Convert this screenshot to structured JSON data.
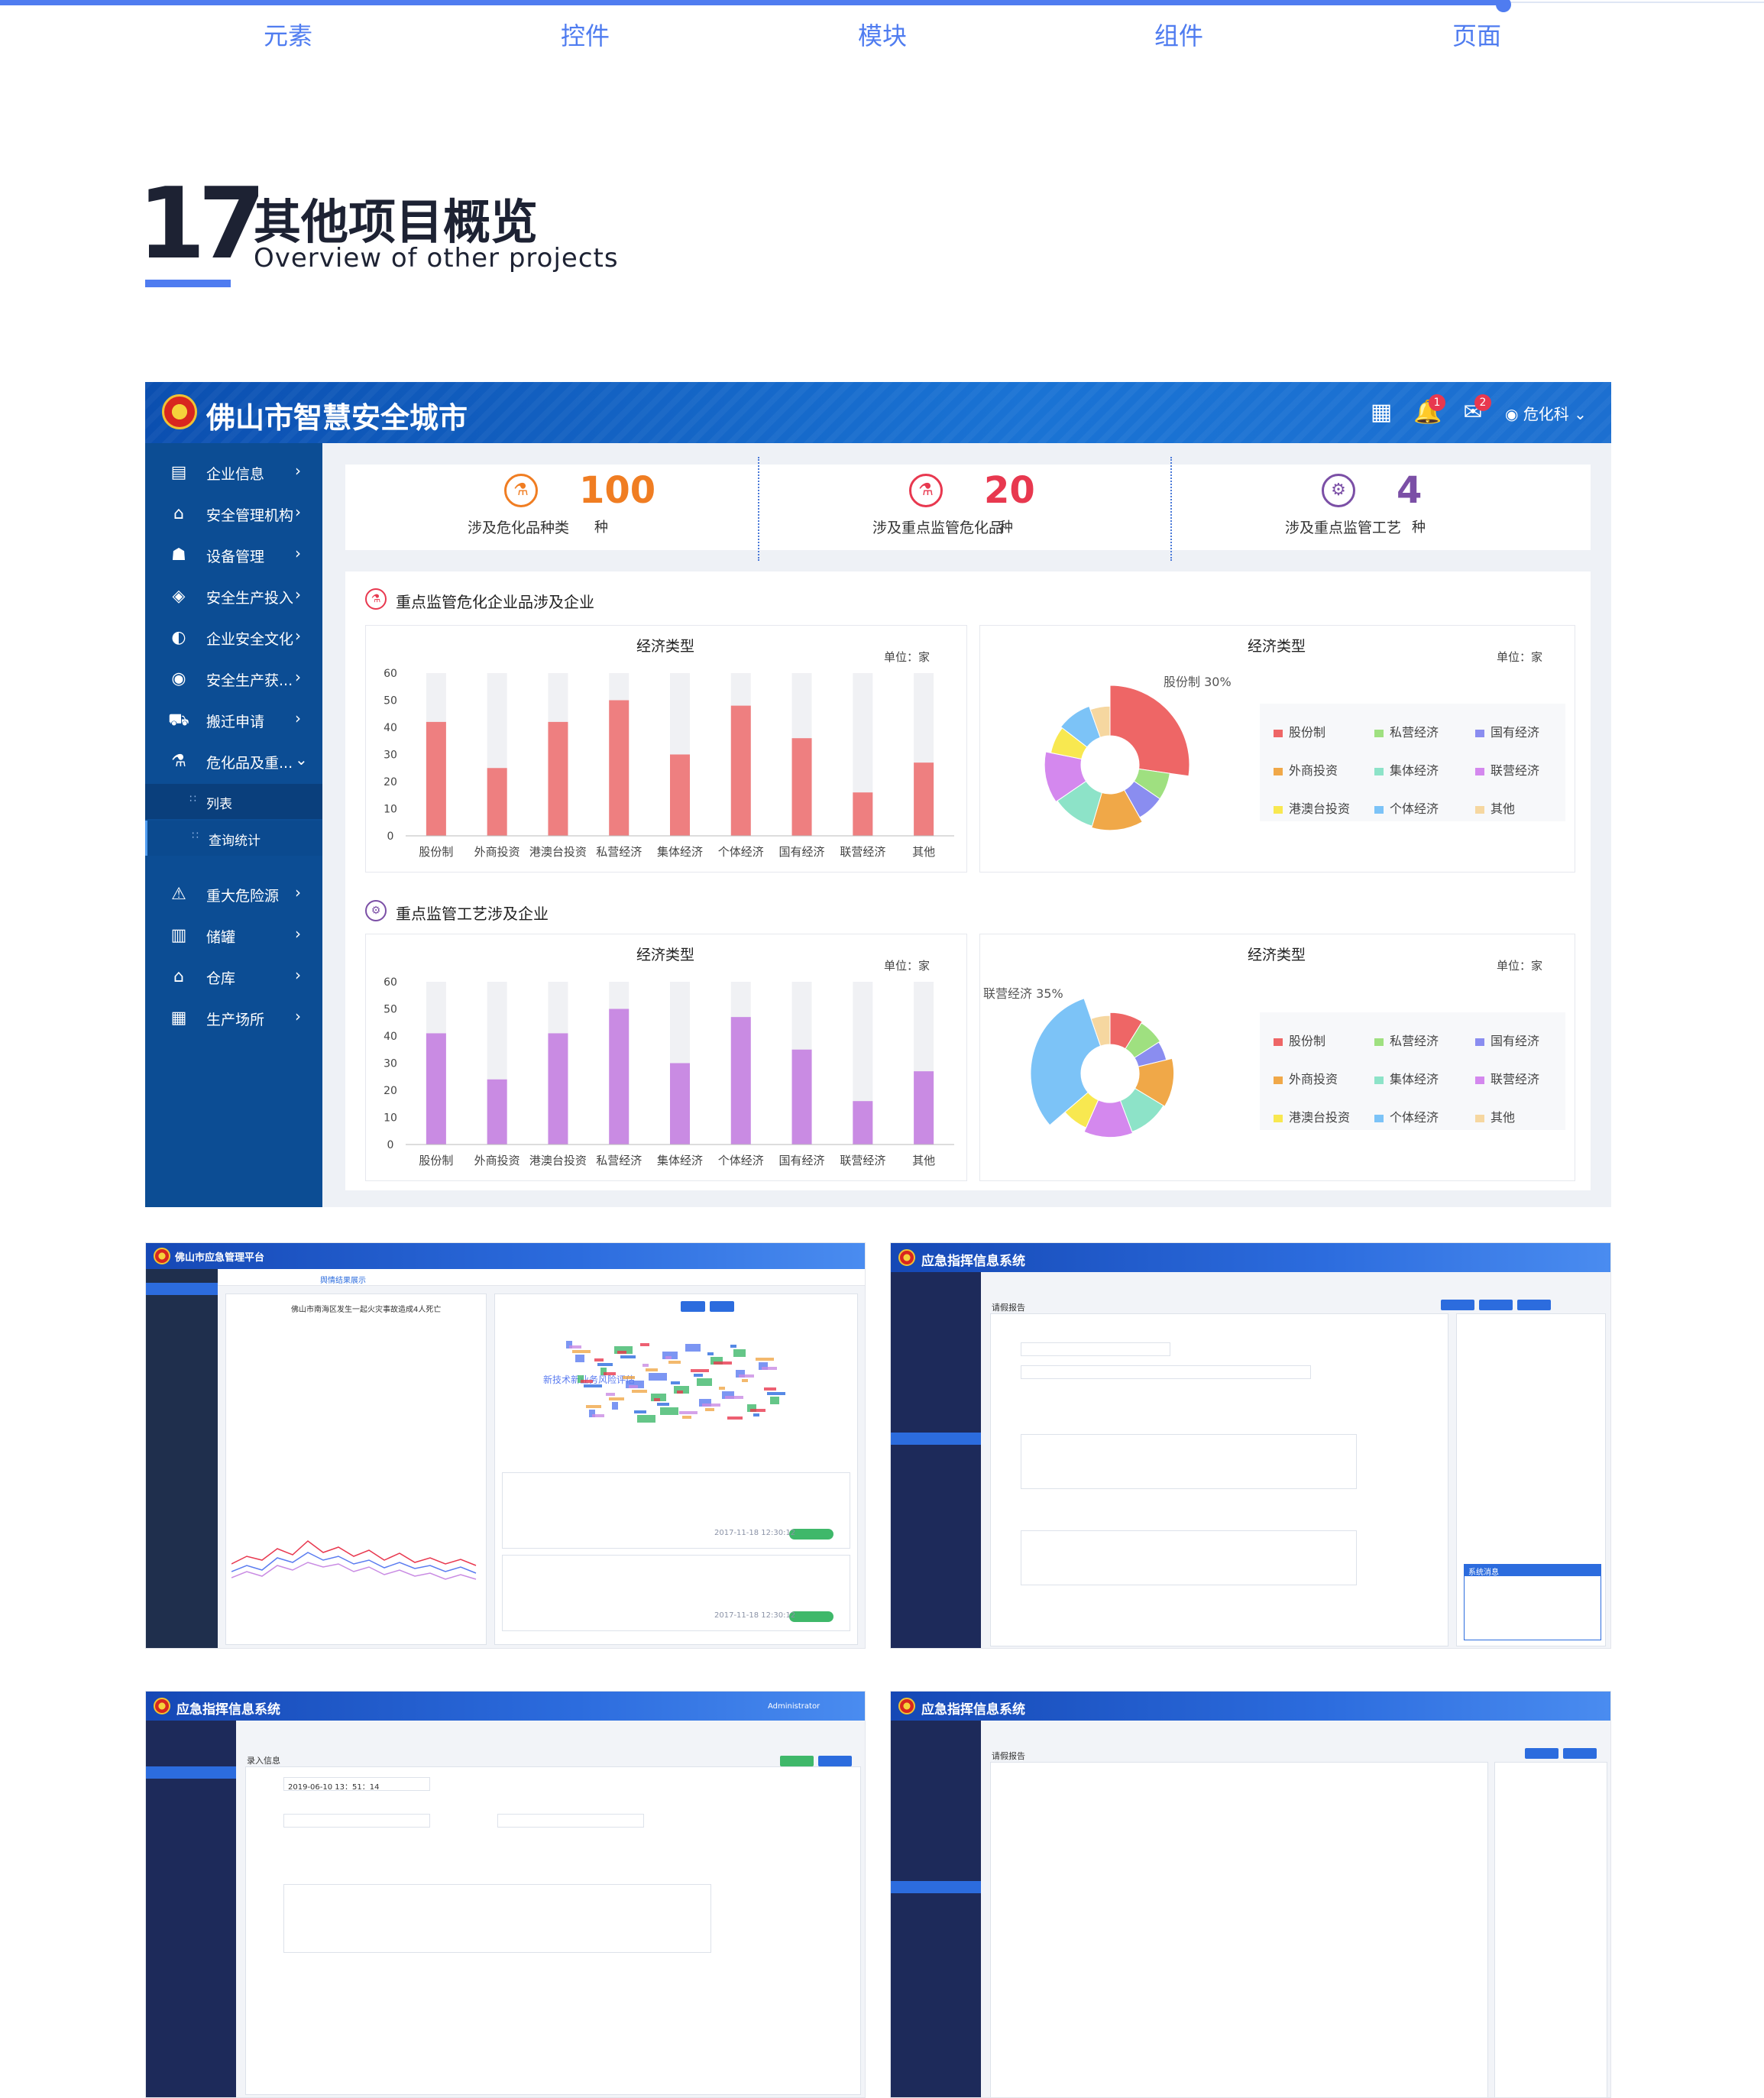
{
  "topnav": {
    "items": [
      "元素",
      "控件",
      "模块",
      "组件",
      "页面"
    ]
  },
  "heading": {
    "number": "17",
    "title_cn": "其他项目概览",
    "title_en": "Overview of other projects"
  },
  "screen1": {
    "app_title": "佛山市智慧安全城市",
    "notif_count": "1",
    "mail_count": "2",
    "user": "危化科",
    "sidebar": [
      {
        "label": "企业信息",
        "icon": "company-info-icon"
      },
      {
        "label": "安全管理机构",
        "icon": "institution-icon"
      },
      {
        "label": "设备管理",
        "icon": "equipment-icon"
      },
      {
        "label": "安全生产投入",
        "icon": "investment-icon"
      },
      {
        "label": "企业安全文化",
        "icon": "culture-icon"
      },
      {
        "label": "安全生产获...",
        "icon": "award-icon"
      },
      {
        "label": "搬迁申请",
        "icon": "truck-icon"
      },
      {
        "label": "危化品及重...",
        "icon": "flask-icon"
      }
    ],
    "sub_items": [
      "列表",
      "查询统计"
    ],
    "sidebar2": [
      {
        "label": "重大危险源",
        "icon": "warning-icon"
      },
      {
        "label": "储罐",
        "icon": "tank-icon"
      },
      {
        "label": "仓库",
        "icon": "warehouse-icon"
      },
      {
        "label": "生产场所",
        "icon": "factory-icon"
      }
    ],
    "stats": [
      {
        "value": "100",
        "unit": "种",
        "label": "涉及危化品种类",
        "color": "#f07d22"
      },
      {
        "value": "20",
        "unit": "种",
        "label": "涉及重点监管危化品",
        "color": "#e8384f"
      },
      {
        "value": "4",
        "unit": "种",
        "label": "涉及重点监管工艺",
        "color": "#7b4fa6"
      }
    ],
    "section1_title": "重点监管危化企业品涉及企业",
    "section2_title": "重点监管工艺涉及企业",
    "chart_title": "经济类型",
    "unit_label": "单位：家",
    "pie1_label": "股份制 30%",
    "pie2_label": "联营经济 35%",
    "legend": [
      {
        "name": "股份制",
        "color": "#ee6666"
      },
      {
        "name": "私营经济",
        "color": "#9fe080"
      },
      {
        "name": "国有经济",
        "color": "#8a8df0"
      },
      {
        "name": "外商投资",
        "color": "#f0a848"
      },
      {
        "name": "集体经济",
        "color": "#8de3c8"
      },
      {
        "name": "联营经济",
        "color": "#d488ee"
      },
      {
        "name": "港澳台投资",
        "color": "#f8e850"
      },
      {
        "name": "个体经济",
        "color": "#7cc3f7"
      },
      {
        "name": "其他",
        "color": "#f6d7a0"
      }
    ]
  },
  "chart_data": [
    {
      "type": "bar",
      "title": "经济类型",
      "ylabel": "单位：家",
      "categories": [
        "股份制",
        "外商投资",
        "港澳台投资",
        "私营经济",
        "集体经济",
        "个体经济",
        "国有经济",
        "联营经济",
        "其他"
      ],
      "values": [
        42,
        25,
        42,
        50,
        30,
        48,
        36,
        16,
        27
      ],
      "ylim": [
        0,
        60
      ],
      "yticks": [
        0,
        10,
        20,
        30,
        40,
        50,
        60
      ],
      "color": "#ee7f80"
    },
    {
      "type": "pie",
      "title": "经济类型",
      "categories": [
        "股份制",
        "外商投资",
        "港澳台投资",
        "私营经济",
        "集体经济",
        "个体经济",
        "国有经济",
        "联营经济",
        "其他"
      ],
      "values": [
        30,
        8,
        8,
        14,
        12,
        14,
        8,
        10,
        6
      ],
      "donut": true
    },
    {
      "type": "bar",
      "title": "经济类型",
      "ylabel": "单位：家",
      "categories": [
        "股份制",
        "外商投资",
        "港澳台投资",
        "私营经济",
        "集体经济",
        "个体经济",
        "国有经济",
        "联营经济",
        "其他"
      ],
      "values": [
        41,
        24,
        41,
        50,
        30,
        47,
        35,
        16,
        27
      ],
      "ylim": [
        0,
        60
      ],
      "yticks": [
        0,
        10,
        20,
        30,
        40,
        50,
        60
      ],
      "color": "#c98be3"
    },
    {
      "type": "pie",
      "title": "经济类型",
      "categories": [
        "股份制",
        "外商投资",
        "港澳台投资",
        "私营经济",
        "集体经济",
        "个体经济",
        "国有经济",
        "联营经济",
        "其他"
      ],
      "values": [
        10,
        8,
        6,
        14,
        12,
        14,
        8,
        35,
        6
      ],
      "donut": true
    }
  ],
  "screen2": {
    "app_title": "佛山市应急管理平台",
    "tab_active": "舆情结果展示",
    "doc_title": "佛山市南海区发生一起火灾事故造成4人死亡",
    "word_center": "新技术新业务风险评估",
    "ok": "确定",
    "cancel": "返回",
    "badge": "相关度：1.1",
    "date": "2017-11-18 12:30:12"
  },
  "screen3": {
    "app_title": "应急指挥信息系统",
    "form_title": "请假报告",
    "popup_title": "系统消息"
  },
  "screen4": {
    "app_title": "应急指挥信息系统",
    "form_title": "录入信息",
    "user": "Administrator",
    "date_val": "2019-06-10 13：51：14"
  },
  "screen5": {
    "app_title": "应急指挥信息系统",
    "form_title": "请假报告"
  }
}
